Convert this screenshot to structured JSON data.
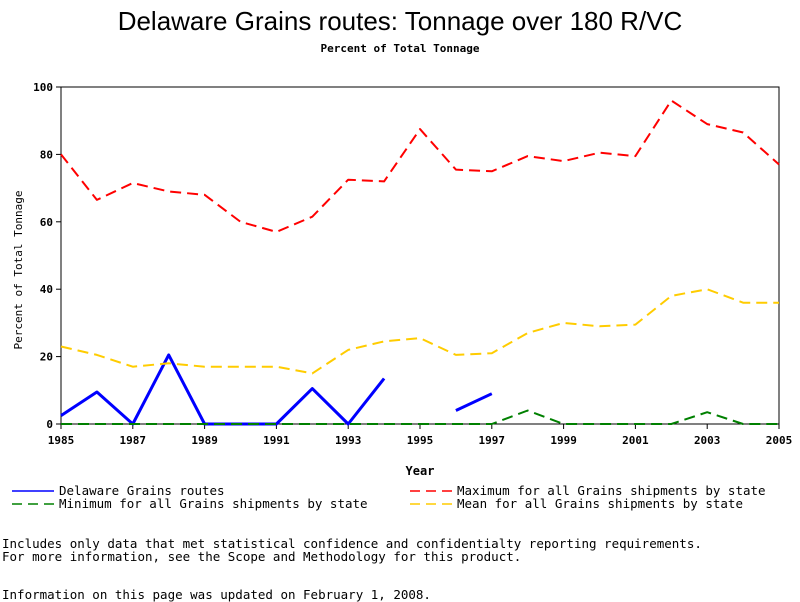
{
  "chart_data": {
    "type": "line",
    "title": "Delaware Grains routes: Tonnage over 180 R/VC",
    "subtitle": "Percent of Total Tonnage",
    "xlabel": "Year",
    "ylabel": "Percent of Total Tonnage",
    "xlim": [
      1985,
      2005
    ],
    "ylim": [
      0,
      100
    ],
    "x_ticks": [
      1985,
      1987,
      1989,
      1991,
      1993,
      1995,
      1997,
      1999,
      2001,
      2003,
      2005
    ],
    "y_ticks": [
      0,
      20,
      40,
      60,
      80,
      100
    ],
    "x": [
      1985,
      1986,
      1987,
      1988,
      1989,
      1990,
      1991,
      1992,
      1993,
      1994,
      1995,
      1996,
      1997,
      1998,
      1999,
      2000,
      2001,
      2002,
      2003,
      2004,
      2005
    ],
    "series": [
      {
        "name": "Delaware Grains routes",
        "color": "#0000ff",
        "style": "solid",
        "values": [
          2.5,
          9.5,
          0,
          20.5,
          0,
          0,
          0,
          10.5,
          0,
          13.5,
          null,
          4,
          9,
          null,
          null,
          null,
          null,
          null,
          null,
          null,
          null
        ]
      },
      {
        "name": "Maximum for all Grains shipments by state",
        "color": "#ff0000",
        "style": "dashed",
        "values": [
          80,
          66.5,
          71.5,
          69,
          68,
          60,
          57,
          61.5,
          72.5,
          72,
          87.5,
          75.5,
          75,
          79.5,
          78,
          80.5,
          79.5,
          96,
          89,
          86.5,
          77
        ]
      },
      {
        "name": "Minimum for all Grains shipments by state",
        "color": "#008000",
        "style": "dashed",
        "values": [
          0,
          0,
          0,
          0,
          0,
          0,
          0,
          0,
          0,
          0,
          0,
          0,
          0,
          4,
          0,
          0,
          0,
          0,
          3.5,
          0,
          0
        ]
      },
      {
        "name": "Mean for all Grains shipments by state",
        "color": "#ffcc00",
        "style": "dashed",
        "values": [
          23,
          20.5,
          17,
          18,
          17,
          17,
          17,
          15,
          22,
          24.5,
          25.5,
          20.5,
          21,
          27,
          30,
          29,
          29.5,
          38,
          40,
          36,
          36
        ]
      }
    ],
    "grid": false,
    "legend_position": "bottom"
  },
  "notes": {
    "line1": "Includes only data that met statistical confidence and confidentialty reporting requirements.",
    "line2": "For more information, see the Scope and Methodology for this product.",
    "updated": "Information on this page was updated on February 1, 2008."
  }
}
